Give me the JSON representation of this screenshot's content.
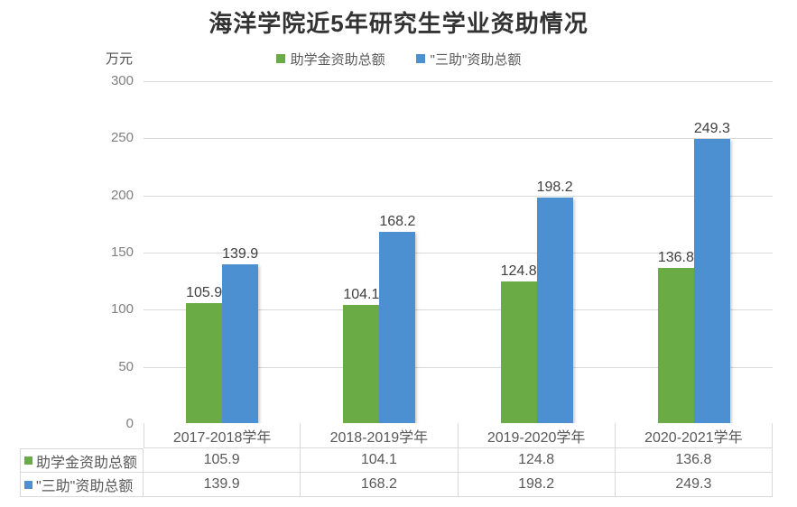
{
  "title": "海洋学院近5年研究生学业资助情况",
  "unit_label": "万元",
  "chart_data": {
    "type": "bar",
    "title": "海洋学院近5年研究生学业资助情况",
    "ylabel": "万元",
    "xlabel": "",
    "categories": [
      "2017-2018学年",
      "2018-2019学年",
      "2019-2020学年",
      "2020-2021学年"
    ],
    "series": [
      {
        "name": "助学金资助总额",
        "color": "#6AAB46",
        "values": [
          105.9,
          104.1,
          124.8,
          136.8
        ]
      },
      {
        "name": "\"三助\"资助总额",
        "color": "#4D90D1",
        "values": [
          139.9,
          168.2,
          198.2,
          249.3
        ]
      }
    ],
    "ylim": [
      0,
      300
    ],
    "yticks": [
      0,
      50,
      100,
      150,
      200,
      250,
      300
    ],
    "grid": true,
    "legend_position": "top",
    "data_labels": true,
    "data_table": true
  },
  "colors": {
    "grid": "#D9D9D9",
    "axis_text": "#7F7F7F",
    "label_text": "#404040",
    "table_text": "#595959",
    "title_text": "#333333"
  }
}
